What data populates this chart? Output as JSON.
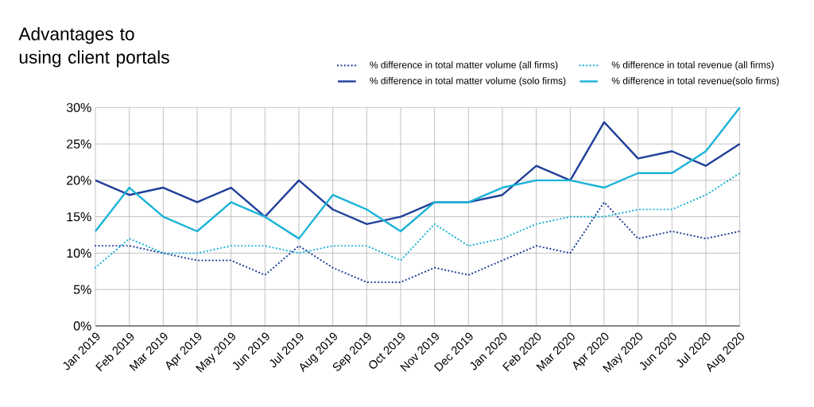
{
  "chart_data": {
    "type": "line",
    "title": "Advantages to using client portals",
    "categories": [
      "Jan 2019",
      "Feb 2019",
      "Mar 2019",
      "Apr 2019",
      "May 2019",
      "Jun 2019",
      "Jul 2019",
      "Aug 2019",
      "Sep 2019",
      "Oct 2019",
      "Nov 2019",
      "Dec 2019",
      "Jan 2020",
      "Feb 2020",
      "Mar 2020",
      "Apr 2020",
      "May 2020",
      "Jun 2020",
      "Jul 2020",
      "Aug 2020"
    ],
    "series": [
      {
        "name": "% difference in total matter volume (all firms)",
        "color": "#1f3f9a",
        "line_style": "dotted",
        "values": [
          11,
          11,
          10,
          9,
          9,
          7,
          11,
          8,
          6,
          6,
          8,
          7,
          9,
          11,
          10,
          17,
          12,
          13,
          12,
          13
        ]
      },
      {
        "name": "% difference in total revenue (all firms)",
        "color": "#1ab3d8",
        "line_style": "dotted",
        "values": [
          8,
          12,
          10,
          10,
          11,
          11,
          10,
          11,
          11,
          9,
          14,
          11,
          12,
          14,
          15,
          15,
          16,
          16,
          18,
          21
        ]
      },
      {
        "name": "% difference in total matter volume (solo firms)",
        "color": "#1f3f9a",
        "line_style": "solid",
        "values": [
          20,
          18,
          19,
          17,
          19,
          15,
          20,
          16,
          14,
          15,
          17,
          17,
          18,
          22,
          20,
          28,
          23,
          24,
          22,
          25
        ]
      },
      {
        "name": "% difference in total revenue(solo firms)",
        "color": "#1ab3d8",
        "line_style": "solid",
        "values": [
          13,
          19,
          15,
          13,
          17,
          15,
          12,
          18,
          16,
          13,
          17,
          17,
          19,
          20,
          20,
          19,
          21,
          21,
          24,
          30
        ]
      }
    ],
    "ylim": [
      0,
      30
    ],
    "yticks": [
      {
        "value": 0,
        "label": "0%"
      },
      {
        "value": 5,
        "label": "5%"
      },
      {
        "value": 10,
        "label": "10%"
      },
      {
        "value": 15,
        "label": "15%"
      },
      {
        "value": 20,
        "label": "20%"
      },
      {
        "value": 25,
        "label": "25%"
      },
      {
        "value": 30,
        "label": "30%"
      }
    ],
    "grid": true,
    "legend": "top right"
  }
}
